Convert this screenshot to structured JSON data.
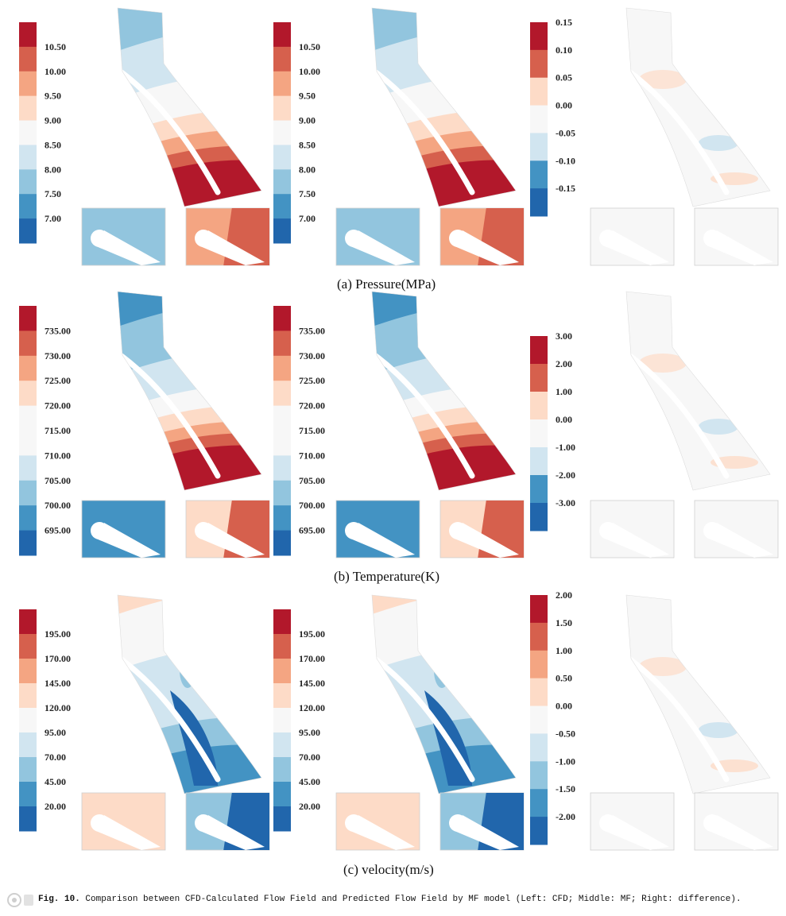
{
  "figure": {
    "rows": [
      {
        "caption": "(a) Pressure(MPa)",
        "cfd_scale": [
          "10.50",
          "10.00",
          "9.50",
          "9.00",
          "8.50",
          "8.00",
          "7.50",
          "7.00"
        ],
        "mf_scale": [
          "10.50",
          "10.00",
          "9.50",
          "9.00",
          "8.50",
          "8.00",
          "7.50",
          "7.00"
        ],
        "diff_scale": [
          "0.15",
          "0.10",
          "0.05",
          "0.00",
          "-0.05",
          "-0.10",
          "-0.15"
        ]
      },
      {
        "caption": "(b) Temperature(K)",
        "cfd_scale": [
          "735.00",
          "730.00",
          "725.00",
          "720.00",
          "715.00",
          "710.00",
          "705.00",
          "700.00",
          "695.00"
        ],
        "mf_scale": [
          "735.00",
          "730.00",
          "725.00",
          "720.00",
          "715.00",
          "710.00",
          "705.00",
          "700.00",
          "695.00"
        ],
        "diff_scale": [
          "3.00",
          "2.00",
          "1.00",
          "0.00",
          "-1.00",
          "-2.00",
          "-3.00"
        ]
      },
      {
        "caption": "(c) velocity(m/s)",
        "cfd_scale": [
          "195.00",
          "170.00",
          "145.00",
          "120.00",
          "95.00",
          "70.00",
          "45.00",
          "20.00"
        ],
        "mf_scale": [
          "195.00",
          "170.00",
          "145.00",
          "120.00",
          "95.00",
          "70.00",
          "45.00",
          "20.00"
        ],
        "diff_scale": [
          "2.00",
          "1.50",
          "1.00",
          "0.50",
          "0.00",
          "-0.50",
          "-1.00",
          "-1.50",
          "-2.00"
        ]
      }
    ],
    "caption_label": "Fig. 10.",
    "caption_text": " Comparison between CFD-Calculated Flow Field and Predicted Flow Field by MF model (Left: CFD; Middle: MF; Right: difference)."
  },
  "colors": {
    "rdbu": [
      "#b2182b",
      "#d6604d",
      "#f4a582",
      "#fddbc7",
      "#f7f7f7",
      "#d1e5f0",
      "#92c5de",
      "#4393c3",
      "#2166ac"
    ]
  }
}
